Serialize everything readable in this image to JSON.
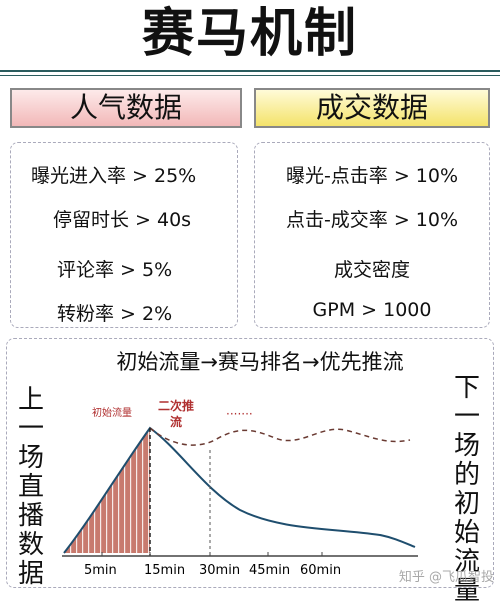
{
  "title": "赛马机制",
  "popularity": {
    "heading": "人气数据",
    "items": [
      "曝光进入率 > 25%",
      "停留时长 > 40s",
      "评论率 > 5%",
      "转粉率 > 2%"
    ]
  },
  "conversion": {
    "heading": "成交数据",
    "items": [
      "曝光-点击率 > 10%",
      "点击-成交率 > 10%",
      "成交密度",
      "GPM > 1000"
    ]
  },
  "flow_text": "初始流量→赛马排名→优先推流",
  "left_label": "上一场直播数据",
  "right_label": "下一场的初始流量",
  "chart": {
    "annotation_initial": "初始流量",
    "annotation_second_1": "二次推",
    "annotation_second_2": "流",
    "annotation_dots": "·······",
    "ticks": [
      "5min",
      "15min",
      "30min",
      "45min",
      "60min"
    ],
    "colors": {
      "fill": "#c87a6e",
      "stripe": "#ffffff",
      "curve": "#1f4e6e",
      "dashed_curve": "#6a3a32",
      "annotation": "#b03030",
      "axis": "#444444"
    }
  },
  "watermark": "知乎 @飞瓜智投"
}
